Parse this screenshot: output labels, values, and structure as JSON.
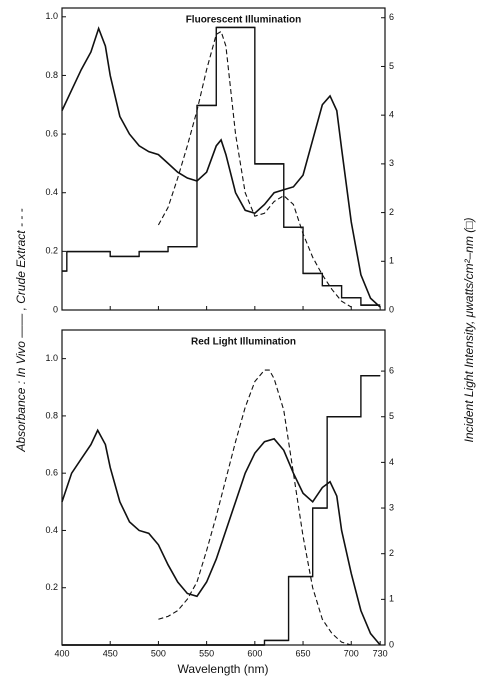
{
  "chart_data": [
    {
      "type": "line",
      "title": "Fluorescent Illumination",
      "ylabel": "Absorbance : In Vivo —— , Crude Extract - - -",
      "y2label": "Incident Light Intensity, μwatts/cm²–nm (□)",
      "xlim": [
        400,
        735
      ],
      "xticks": [
        400,
        450,
        500,
        550,
        600,
        650,
        700,
        730
      ],
      "ylim": [
        0,
        1.03
      ],
      "yticks": [
        0,
        0.2,
        0.4,
        0.6,
        0.8,
        {
          "value": 1,
          "label": "1.0"
        }
      ],
      "y2lim": [
        0,
        6.2
      ],
      "y2ticks": [
        0,
        1,
        2,
        3,
        4,
        5,
        6
      ],
      "series": [
        {
          "style": "solid",
          "color": "#111",
          "x": [
            400,
            410,
            420,
            430,
            438,
            445,
            450,
            460,
            470,
            480,
            490,
            500,
            510,
            520,
            530,
            540,
            550,
            560,
            565,
            570,
            580,
            590,
            600,
            610,
            620,
            630,
            640,
            650,
            660,
            670,
            678,
            685,
            690,
            700,
            710,
            720,
            730
          ],
          "values": [
            0.68,
            0.75,
            0.82,
            0.88,
            0.96,
            0.9,
            0.8,
            0.66,
            0.6,
            0.56,
            0.54,
            0.53,
            0.5,
            0.47,
            0.45,
            0.44,
            0.47,
            0.56,
            0.58,
            0.53,
            0.4,
            0.34,
            0.33,
            0.36,
            0.4,
            0.41,
            0.42,
            0.46,
            0.58,
            0.7,
            0.73,
            0.68,
            0.55,
            0.3,
            0.12,
            0.04,
            0.01
          ]
        },
        {
          "style": "dashed",
          "color": "#111",
          "x": [
            500,
            510,
            520,
            530,
            540,
            550,
            560,
            565,
            570,
            580,
            590,
            600,
            610,
            620,
            630,
            640,
            650,
            660,
            670,
            680,
            690,
            700
          ],
          "values": [
            0.29,
            0.35,
            0.45,
            0.56,
            0.68,
            0.82,
            0.94,
            0.95,
            0.9,
            0.6,
            0.4,
            0.32,
            0.33,
            0.37,
            0.39,
            0.36,
            0.26,
            0.18,
            0.12,
            0.07,
            0.03,
            0.01
          ]
        },
        {
          "style": "step",
          "color": "#111",
          "axis": "y2",
          "bins": [
            400,
            405,
            450,
            480,
            510,
            540,
            560,
            600,
            630,
            650,
            670,
            690,
            710,
            730
          ],
          "values": [
            0.8,
            1.2,
            1.1,
            1.2,
            1.3,
            4.2,
            5.8,
            3.0,
            1.7,
            0.75,
            0.5,
            0.25,
            0.1
          ]
        }
      ]
    },
    {
      "type": "line",
      "title": "Red Light Illumination",
      "xlabel": "Wavelength (nm)",
      "xlim": [
        400,
        735
      ],
      "xticks": [
        400,
        450,
        500,
        550,
        600,
        650,
        700,
        730
      ],
      "ylim": [
        0,
        1.1
      ],
      "yticks": [
        0.2,
        0.4,
        0.6,
        0.8,
        {
          "value": 1,
          "label": "1.0"
        }
      ],
      "y2lim": [
        0,
        6.9
      ],
      "y2ticks": [
        0,
        1,
        2,
        3,
        4,
        5,
        6
      ],
      "series": [
        {
          "style": "solid",
          "color": "#111",
          "x": [
            400,
            410,
            420,
            430,
            437,
            445,
            450,
            460,
            470,
            480,
            490,
            500,
            510,
            520,
            530,
            540,
            550,
            560,
            570,
            580,
            590,
            600,
            610,
            620,
            630,
            640,
            650,
            660,
            670,
            678,
            685,
            690,
            700,
            710,
            720,
            730
          ],
          "values": [
            0.5,
            0.6,
            0.65,
            0.7,
            0.75,
            0.7,
            0.62,
            0.5,
            0.43,
            0.4,
            0.39,
            0.35,
            0.28,
            0.22,
            0.18,
            0.17,
            0.22,
            0.3,
            0.4,
            0.5,
            0.6,
            0.67,
            0.71,
            0.72,
            0.68,
            0.6,
            0.53,
            0.5,
            0.55,
            0.57,
            0.52,
            0.4,
            0.25,
            0.12,
            0.04,
            0
          ]
        },
        {
          "style": "dashed",
          "color": "#111",
          "x": [
            500,
            510,
            520,
            530,
            540,
            550,
            560,
            570,
            580,
            590,
            600,
            610,
            615,
            620,
            630,
            640,
            650,
            660,
            670,
            680,
            690,
            700
          ],
          "values": [
            0.09,
            0.1,
            0.12,
            0.16,
            0.22,
            0.33,
            0.45,
            0.58,
            0.71,
            0.83,
            0.92,
            0.96,
            0.96,
            0.93,
            0.82,
            0.6,
            0.38,
            0.2,
            0.09,
            0.04,
            0.01,
            0
          ]
        },
        {
          "style": "step",
          "color": "#111",
          "axis": "y2",
          "bins": [
            400,
            610,
            635,
            660,
            675,
            710,
            730
          ],
          "values": [
            0,
            0.1,
            1.5,
            3.0,
            5.0,
            5.9
          ]
        }
      ]
    }
  ]
}
